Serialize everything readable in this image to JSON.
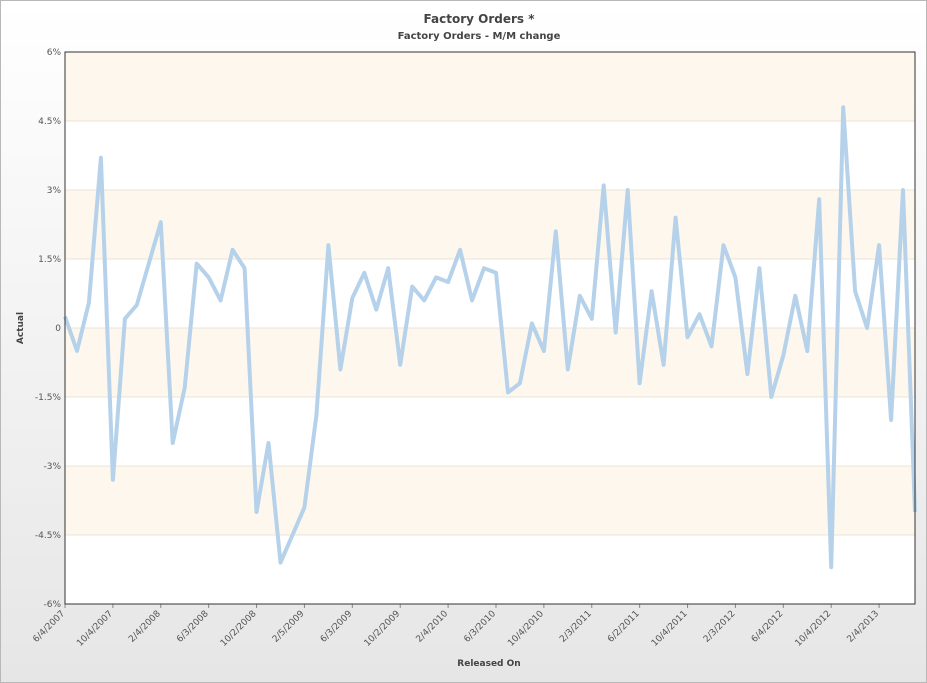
{
  "chart_data": {
    "type": "line",
    "title": "Factory Orders *",
    "subtitle": "Factory Orders - M/M change",
    "x_label": "Released On",
    "y_label": "Actual",
    "categories": [
      "6/4/2007",
      null,
      null,
      null,
      "10/4/2007",
      null,
      null,
      null,
      "2/4/2008",
      null,
      null,
      null,
      "6/3/2008",
      null,
      null,
      null,
      "10/2/2008",
      null,
      null,
      null,
      "2/5/2009",
      null,
      null,
      null,
      "6/3/2009",
      null,
      null,
      null,
      "10/2/2009",
      null,
      null,
      null,
      "2/4/2010",
      null,
      null,
      null,
      "6/3/2010",
      null,
      null,
      null,
      "10/4/2010",
      null,
      null,
      null,
      "2/3/2011",
      null,
      null,
      null,
      "6/2/2011",
      null,
      null,
      null,
      "10/4/2011",
      null,
      null,
      null,
      "2/3/2012",
      null,
      null,
      null,
      "6/4/2012",
      null,
      null,
      null,
      "10/4/2012",
      null,
      null,
      null,
      "2/4/2013",
      null,
      null,
      null
    ],
    "values": [
      0.25,
      -0.5,
      0.55,
      3.7,
      -3.3,
      0.2,
      0.5,
      1.4,
      2.3,
      -2.5,
      -1.3,
      1.4,
      1.1,
      0.6,
      1.7,
      1.3,
      -4.0,
      -2.5,
      -5.1,
      -4.5,
      -3.9,
      -1.9,
      1.8,
      -0.9,
      0.65,
      1.2,
      0.4,
      1.3,
      -0.8,
      0.9,
      0.6,
      1.1,
      1.0,
      1.7,
      0.6,
      1.3,
      1.2,
      -1.4,
      -1.2,
      0.1,
      -0.5,
      2.1,
      -0.9,
      0.7,
      0.2,
      3.1,
      -0.1,
      3.0,
      -1.2,
      0.8,
      -0.8,
      2.4,
      -0.2,
      0.3,
      -0.4,
      1.8,
      1.1,
      -1.0,
      1.3,
      -1.5,
      -0.6,
      0.7,
      -0.5,
      2.8,
      -5.2,
      4.8,
      0.8,
      0.0,
      1.8,
      -2.0,
      3.0,
      -4.0
    ],
    "color": "#b5d2ea",
    "ylim": [
      -6,
      6
    ],
    "yticks": [
      {
        "value": -6,
        "label": "-6%"
      },
      {
        "value": -4.5,
        "label": "-4.5%"
      },
      {
        "value": -3,
        "label": "-3%"
      },
      {
        "value": -1.5,
        "label": "-1.5%"
      },
      0,
      {
        "value": 1.5,
        "label": "1.5%"
      },
      {
        "value": 3,
        "label": "3%"
      },
      {
        "value": 4.5,
        "label": "4.5%"
      },
      {
        "value": 6,
        "label": "6%"
      }
    ],
    "band_color": "#fdf7ee"
  }
}
